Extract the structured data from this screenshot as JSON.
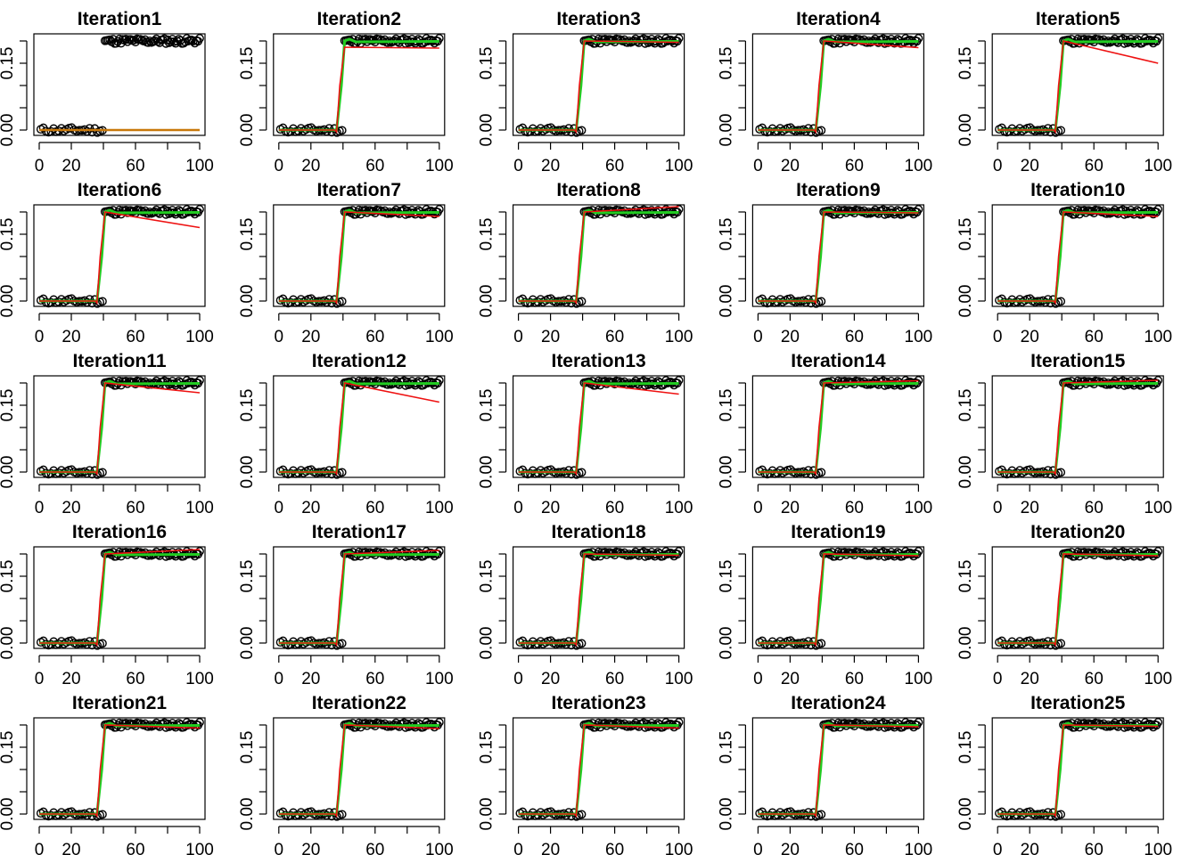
{
  "chart_data": {
    "type": "scatter",
    "layout": "grid-5x5",
    "xlim": [
      0,
      100
    ],
    "ylim": [
      0,
      0.2
    ],
    "xticks": [
      0,
      20,
      40,
      60,
      80,
      100
    ],
    "xtick_labels": [
      "0",
      "20",
      "",
      "60",
      "",
      "100"
    ],
    "yticks": [
      0,
      0.05,
      0.1,
      0.15,
      0.2
    ],
    "ytick_labels": [
      "0.00",
      "",
      "",
      "0.15",
      ""
    ],
    "grid": false,
    "step": {
      "x_before": [
        0,
        40
      ],
      "y_before": 0.0,
      "x_after": [
        40,
        100
      ],
      "y_after": 0.2
    },
    "series": [
      {
        "role": "observed",
        "color": "#000000",
        "marker": "open-circle"
      },
      {
        "role": "fit-green",
        "color": "#22cc22"
      },
      {
        "role": "fit-red",
        "color": "#ee1111"
      }
    ],
    "panels": [
      {
        "title": "Iteration1",
        "mode": "flat",
        "red_end": 0.0
      },
      {
        "title": "Iteration2",
        "mode": "step",
        "red_end": 0.184,
        "red_start": 0.186
      },
      {
        "title": "Iteration3",
        "mode": "step",
        "red_end": 0.197
      },
      {
        "title": "Iteration4",
        "mode": "step",
        "red_end": 0.185
      },
      {
        "title": "Iteration5",
        "mode": "step",
        "red_end": 0.15
      },
      {
        "title": "Iteration6",
        "mode": "step",
        "red_end": 0.165
      },
      {
        "title": "Iteration7",
        "mode": "step",
        "red_end": 0.19
      },
      {
        "title": "Iteration8",
        "mode": "step",
        "red_end": 0.212
      },
      {
        "title": "Iteration9",
        "mode": "step",
        "red_end": 0.198
      },
      {
        "title": "Iteration10",
        "mode": "step",
        "red_end": 0.19
      },
      {
        "title": "Iteration11",
        "mode": "step",
        "red_end": 0.178
      },
      {
        "title": "Iteration12",
        "mode": "step",
        "red_end": 0.157
      },
      {
        "title": "Iteration13",
        "mode": "step",
        "red_end": 0.175
      },
      {
        "title": "Iteration14",
        "mode": "step",
        "red_end": 0.205
      },
      {
        "title": "Iteration15",
        "mode": "step",
        "red_end": 0.206
      },
      {
        "title": "Iteration16",
        "mode": "step",
        "red_end": 0.21
      },
      {
        "title": "Iteration17",
        "mode": "step",
        "red_end": 0.208
      },
      {
        "title": "Iteration18",
        "mode": "step",
        "red_end": 0.197
      },
      {
        "title": "Iteration19",
        "mode": "step",
        "red_end": 0.196
      },
      {
        "title": "Iteration20",
        "mode": "step",
        "red_end": 0.196
      },
      {
        "title": "Iteration21",
        "mode": "step",
        "red_end": 0.193
      },
      {
        "title": "Iteration22",
        "mode": "step",
        "red_end": 0.192
      },
      {
        "title": "Iteration23",
        "mode": "step",
        "red_end": 0.193
      },
      {
        "title": "Iteration24",
        "mode": "step",
        "red_end": 0.196
      },
      {
        "title": "Iteration25",
        "mode": "step",
        "red_end": 0.197
      }
    ],
    "colors": {
      "points": "#000000",
      "green_fit": "#22cc22",
      "red_fit": "#ee1111",
      "overlap_fit": "#c8780a"
    }
  }
}
